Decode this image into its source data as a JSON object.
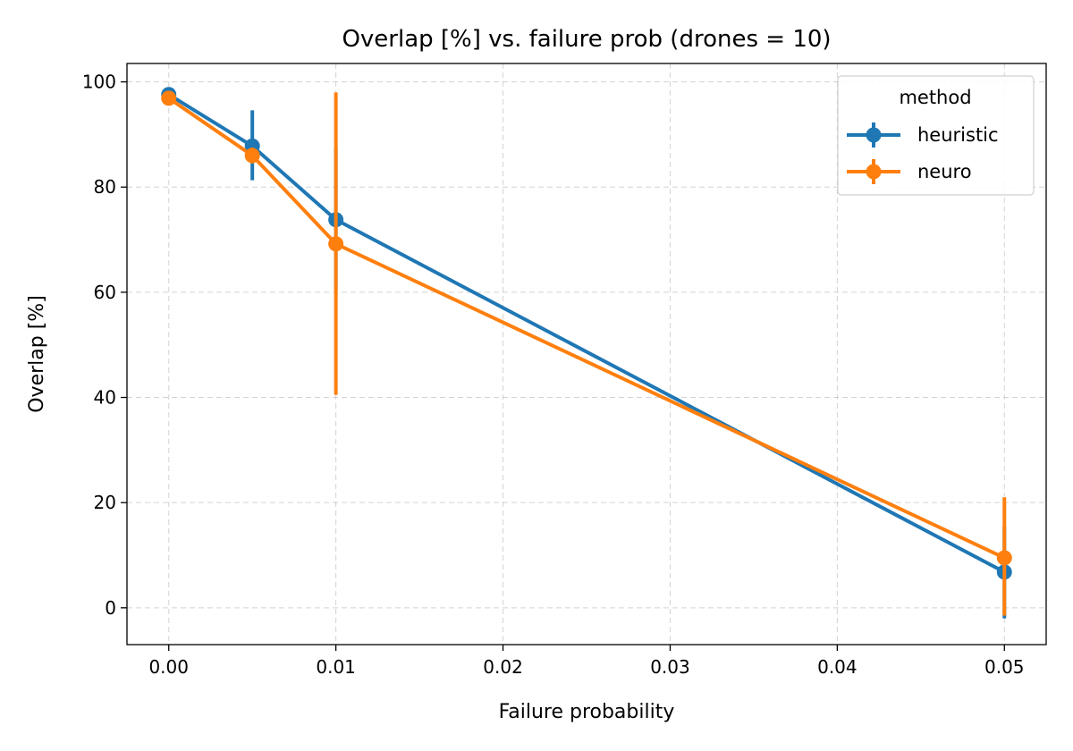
{
  "chart_data": {
    "type": "line",
    "title": "Overlap [%] vs. failure prob (drones = 10)",
    "xlabel": "Failure probability",
    "ylabel": "Overlap [%]",
    "xlim": [
      -0.0025,
      0.0525
    ],
    "ylim": [
      -7,
      103.5
    ],
    "xticks": [
      0.0,
      0.01,
      0.02,
      0.03,
      0.04,
      0.05
    ],
    "xtick_labels": [
      "0.00",
      "0.01",
      "0.02",
      "0.03",
      "0.04",
      "0.05"
    ],
    "yticks": [
      0,
      20,
      40,
      60,
      80,
      100
    ],
    "ytick_labels": [
      "0",
      "20",
      "40",
      "60",
      "80",
      "100"
    ],
    "grid": true,
    "legend": {
      "title": "method",
      "position": "top-right"
    },
    "x": [
      0.0,
      0.005,
      0.01,
      0.05
    ],
    "series": [
      {
        "name": "heuristic",
        "color": "#1f77b4",
        "values": [
          97.6,
          87.8,
          73.8,
          6.8
        ],
        "err_low": [
          97.4,
          81.3,
          60.5,
          -2.0
        ],
        "err_high": [
          97.8,
          94.6,
          87.4,
          15.5
        ]
      },
      {
        "name": "neuro",
        "color": "#ff7f0e",
        "values": [
          96.9,
          86.0,
          69.2,
          9.5
        ],
        "err_low": [
          96.7,
          84.5,
          40.5,
          -1.5
        ],
        "err_high": [
          97.1,
          87.5,
          98.0,
          21.0
        ]
      }
    ]
  }
}
